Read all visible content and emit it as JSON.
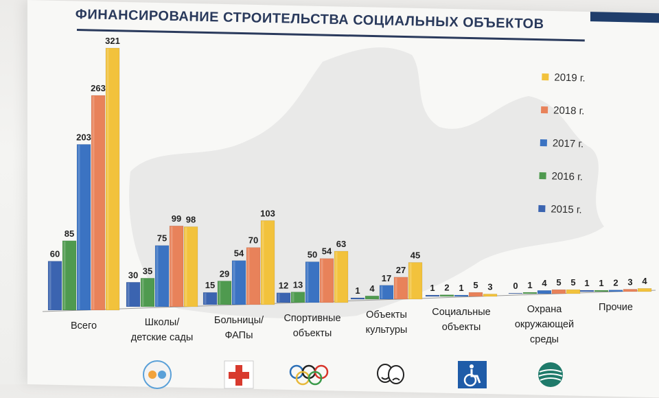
{
  "title": "ФИНАНСИРОВАНИЕ СТРОИТЕЛЬСТВА СОЦИАЛЬНЫХ ОБЪЕКТОВ",
  "colors": {
    "2015": "#3b64b0",
    "2016": "#4f9a4f",
    "2017": "#3b73c2",
    "2018": "#e8825a",
    "2019": "#f2c23c"
  },
  "legend": [
    {
      "key": "2019",
      "label": "2019 г."
    },
    {
      "key": "2018",
      "label": "2018 г."
    },
    {
      "key": "2017",
      "label": "2017 г."
    },
    {
      "key": "2016",
      "label": "2016 г."
    },
    {
      "key": "2015",
      "label": "2015 г."
    }
  ],
  "chart_data": {
    "type": "bar",
    "title": "ФИНАНСИРОВАНИЕ СТРОИТЕЛЬСТВА СОЦИАЛЬНЫХ ОБЪЕКТОВ",
    "categories": [
      "Всего",
      "Школы/ детские сады",
      "Больницы/ ФАПы",
      "Спортивные объекты",
      "Объекты культуры",
      "Социальные объекты",
      "Охрана окружающей среды",
      "Прочие"
    ],
    "category_lines": [
      [
        "Всего"
      ],
      [
        "Школы/",
        "детские сады"
      ],
      [
        "Больницы/",
        "ФАПы"
      ],
      [
        "Спортивные",
        "объекты"
      ],
      [
        "Объекты",
        "культуры"
      ],
      [
        "Социальные",
        "объекты"
      ],
      [
        "Охрана",
        "окружающей",
        "среды"
      ],
      [
        "Прочие"
      ]
    ],
    "series": [
      {
        "name": "2015 г.",
        "key": "2015",
        "values": [
          60,
          30,
          15,
          12,
          1,
          1,
          0,
          1
        ]
      },
      {
        "name": "2016 г.",
        "key": "2016",
        "values": [
          85,
          35,
          29,
          13,
          4,
          2,
          1,
          1
        ]
      },
      {
        "name": "2017 г.",
        "key": "2017",
        "values": [
          203,
          75,
          54,
          50,
          17,
          1,
          4,
          2
        ]
      },
      {
        "name": "2018 г.",
        "key": "2018",
        "values": [
          263,
          99,
          70,
          54,
          27,
          5,
          5,
          3
        ]
      },
      {
        "name": "2019 г.",
        "key": "2019",
        "values": [
          321,
          98,
          103,
          63,
          45,
          3,
          5,
          4
        ]
      }
    ],
    "ylim": [
      0,
      321
    ],
    "grid": false,
    "legend_position": "right"
  },
  "icons": [
    {
      "name": "children-icon"
    },
    {
      "name": "red-cross-icon"
    },
    {
      "name": "olympic-rings-icon"
    },
    {
      "name": "theatre-masks-icon"
    },
    {
      "name": "wheelchair-icon"
    },
    {
      "name": "globe-icon"
    }
  ]
}
